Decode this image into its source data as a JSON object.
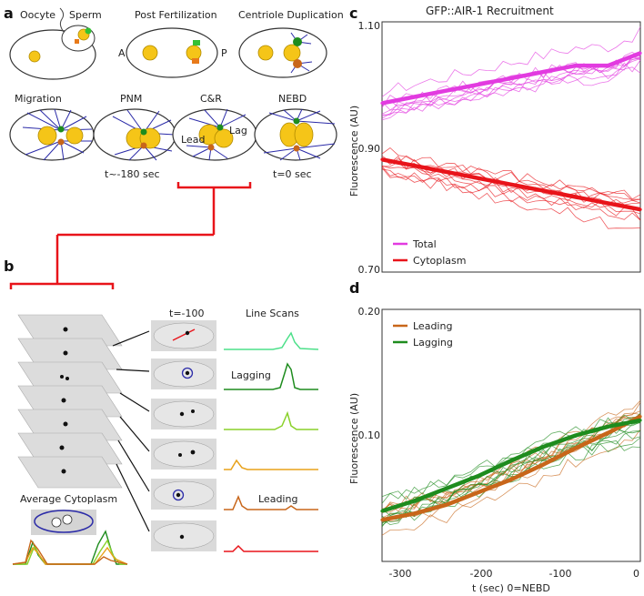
{
  "panels": {
    "a": "a",
    "b": "b",
    "c": "c",
    "d": "d"
  },
  "panel_a": {
    "stages_row1": [
      "Oocyte",
      "Sperm",
      "Post Fertilization",
      "Centriole Duplication"
    ],
    "stages_row2": [
      "Migration",
      "PNM",
      "C&R",
      "NEBD"
    ],
    "axis_anterior": "A",
    "axis_posterior": "P",
    "lead_label": "Lead",
    "lag_label": "Lag",
    "time_pnm": "t~-180 sec",
    "time_nebd": "t=0 sec"
  },
  "panel_b": {
    "time_label": "t=-100",
    "line_scans_label": "Line Scans",
    "lagging_label": "Lagging",
    "leading_label": "Leading",
    "average_cytoplasm_label": "Average Cytoplasm"
  },
  "colors": {
    "total": "#e23be0",
    "cytoplasm": "#e8141a",
    "leading": "#c8661a",
    "lagging": "#1e8c1e",
    "blue": "#2b2ba8",
    "yellow": "#f5c518"
  },
  "chart_data": [
    {
      "type": "line",
      "title": "GFP::AIR-1 Recruitment",
      "xlabel": "",
      "ylabel": "Fluorescence (AU)",
      "xlim": [
        -320,
        0
      ],
      "ylim": [
        0.7,
        1.1
      ],
      "yticks": [
        "0.70",
        "0.90",
        "1.10"
      ],
      "x": [
        -320,
        -280,
        -240,
        -200,
        -160,
        -120,
        -80,
        -40,
        0
      ],
      "series": [
        {
          "name": "Total",
          "values": [
            0.97,
            0.98,
            0.99,
            1.0,
            1.01,
            1.02,
            1.03,
            1.03,
            1.05
          ]
        },
        {
          "name": "Cytoplasm",
          "values": [
            0.88,
            0.87,
            0.86,
            0.85,
            0.84,
            0.83,
            0.82,
            0.81,
            0.8
          ]
        }
      ],
      "legend": "bottom-left"
    },
    {
      "type": "line",
      "title": "",
      "xlabel": "t (sec) 0=NEBD",
      "ylabel": "Fluorescence (AU)",
      "xlim": [
        -320,
        0
      ],
      "ylim": [
        0.0,
        0.2
      ],
      "yticks": [
        "0.10",
        "0.20"
      ],
      "xticks": [
        "-300",
        "-200",
        "-100",
        "0"
      ],
      "x": [
        -320,
        -280,
        -240,
        -200,
        -160,
        -120,
        -80,
        -40,
        0
      ],
      "series": [
        {
          "name": "Leading",
          "values": [
            0.033,
            0.038,
            0.045,
            0.055,
            0.065,
            0.077,
            0.09,
            0.102,
            0.115
          ]
        },
        {
          "name": "Lagging",
          "values": [
            0.04,
            0.048,
            0.058,
            0.068,
            0.08,
            0.091,
            0.1,
            0.107,
            0.112
          ]
        }
      ],
      "legend": "top-left"
    }
  ]
}
